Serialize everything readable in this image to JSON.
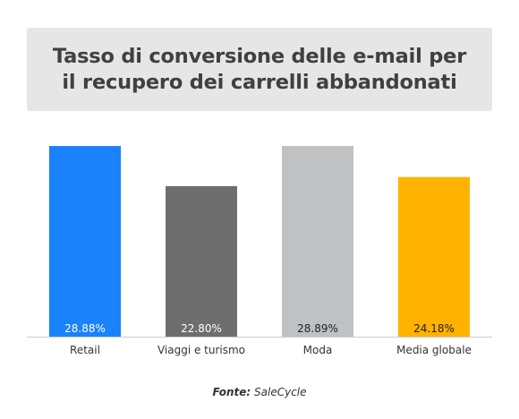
{
  "title": {
    "line1": "Tasso di conversione delle e-mail per",
    "line2": "il recupero dei carrelli abbandonati"
  },
  "source": {
    "label": "Fonte:",
    "value": "SaleCycle"
  },
  "chart_data": {
    "type": "bar",
    "title": "Tasso di conversione delle e-mail per il recupero dei carrelli abbandonati",
    "categories": [
      "Retail",
      "Viaggi e turismo",
      "Moda",
      "Media globale"
    ],
    "values": [
      28.88,
      22.8,
      28.89,
      24.18
    ],
    "value_labels": [
      "28.88%",
      "22.80%",
      "28.89%",
      "24.18%"
    ],
    "colors": [
      "#1a82fb",
      "#6e6e6e",
      "#bfc1c3",
      "#ffb200"
    ],
    "label_colors": [
      "#ffffff",
      "#ffffff",
      "#222222",
      "#222222"
    ],
    "xlabel": "",
    "ylabel": "",
    "ylim": [
      0,
      28.89
    ],
    "grid": false,
    "legend": "none"
  }
}
